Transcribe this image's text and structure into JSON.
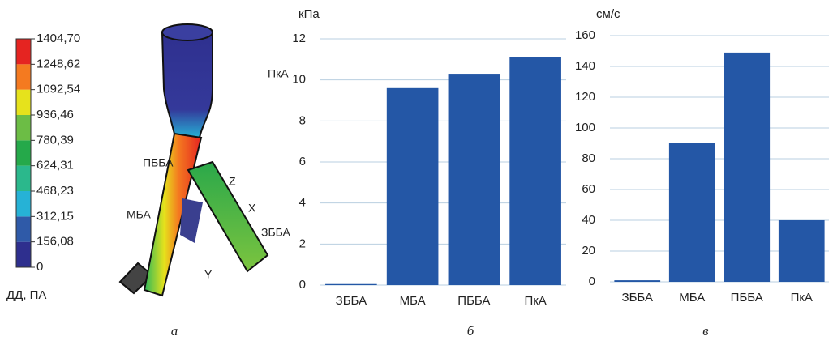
{
  "chart_data": [
    {
      "type": "colorbar",
      "label": "ДД, ПА",
      "panel": "а",
      "ylim": [
        0,
        1404.7
      ],
      "yticks": [
        0,
        {
          "value": 156.08,
          "label": "156,08"
        },
        {
          "value": 312.15,
          "label": "312,15"
        },
        {
          "value": 468.23,
          "label": "468,23"
        },
        {
          "value": 624.31,
          "label": "624,31"
        },
        {
          "value": 780.39,
          "label": "780,39"
        },
        {
          "value": 936.46,
          "label": "936,46"
        },
        {
          "value": 1092.54,
          "label": "1092,54"
        },
        {
          "value": 1248.62,
          "label": "1248,62"
        },
        {
          "value": 1404.7,
          "label": "1404,70"
        }
      ],
      "colors": [
        "#2e2f8e",
        "#2f5aa8",
        "#26b2d6",
        "#2bb88c",
        "#25a94a",
        "#6cbd45",
        "#e6e21c",
        "#f47a20",
        "#e52421"
      ],
      "annotations": [
        "ПкА",
        "ПББА",
        "МБА",
        "ЗББА",
        "Z",
        "X",
        "Y"
      ]
    },
    {
      "type": "bar",
      "unit": "кПа",
      "panel": "б",
      "color": "#2457a6",
      "grid": true,
      "categories": [
        "ЗББА",
        "МБА",
        "ПББА",
        "ПкА"
      ],
      "values": [
        0.05,
        9.6,
        10.3,
        11.1
      ],
      "ylim": [
        0,
        12
      ],
      "yticks": [
        0,
        2,
        4,
        6,
        8,
        10,
        12
      ]
    },
    {
      "type": "bar",
      "unit": "см/с",
      "panel": "в",
      "color": "#2457a6",
      "grid": true,
      "categories": [
        "ЗББА",
        "МБА",
        "ПББА",
        "ПкА"
      ],
      "values": [
        1,
        90,
        149,
        40
      ],
      "ylim": [
        0,
        160
      ],
      "yticks": [
        0,
        20,
        40,
        60,
        80,
        100,
        120,
        140,
        160
      ]
    }
  ]
}
